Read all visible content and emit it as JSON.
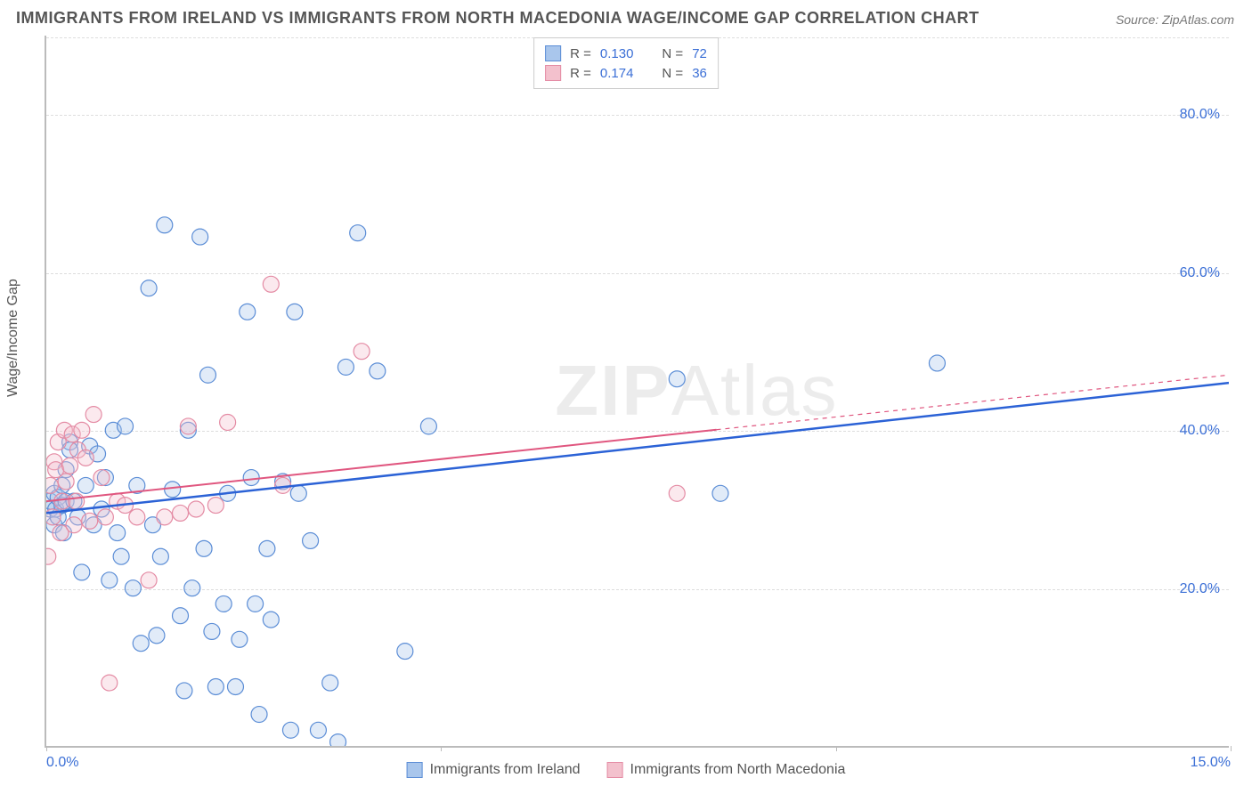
{
  "title": "IMMIGRANTS FROM IRELAND VS IMMIGRANTS FROM NORTH MACEDONIA WAGE/INCOME GAP CORRELATION CHART",
  "source": "Source: ZipAtlas.com",
  "ylabel": "Wage/Income Gap",
  "watermark_bold": "ZIP",
  "watermark_thin": "Atlas",
  "chart": {
    "type": "scatter",
    "background_color": "#ffffff",
    "grid_color": "#dddddd",
    "axis_color": "#bbbbbb",
    "tick_label_color": "#3b6fd6",
    "tick_fontsize": 16,
    "xlim": [
      0,
      15
    ],
    "ylim": [
      0,
      90
    ],
    "x_ticks": [
      0,
      5,
      10,
      15
    ],
    "x_tick_labels": [
      "0.0%",
      "",
      "",
      "15.0%"
    ],
    "y_gridlines": [
      20,
      40,
      60,
      80
    ],
    "y_tick_labels": [
      "20.0%",
      "40.0%",
      "60.0%",
      "80.0%"
    ],
    "marker_radius": 9,
    "marker_fill_opacity": 0.35,
    "legend_top": [
      {
        "swatch_fill": "#a9c6ec",
        "swatch_stroke": "#5b8dd6",
        "r_label": "R =",
        "r_value": "0.130",
        "n_label": "N =",
        "n_value": "72"
      },
      {
        "swatch_fill": "#f3c1cd",
        "swatch_stroke": "#e48ba4",
        "r_label": "R =",
        "r_value": "0.174",
        "n_label": "N =",
        "n_value": "36"
      }
    ],
    "legend_bottom": [
      {
        "swatch_fill": "#a9c6ec",
        "swatch_stroke": "#5b8dd6",
        "label": "Immigrants from Ireland"
      },
      {
        "swatch_fill": "#f3c1cd",
        "swatch_stroke": "#e48ba4",
        "label": "Immigrants from North Macedonia"
      }
    ],
    "series": [
      {
        "name": "Immigrants from Ireland",
        "color_fill": "#a9c6ec",
        "color_stroke": "#5b8dd6",
        "trend_color": "#2b62d6",
        "trend_width": 2.5,
        "trend": {
          "x1": 0,
          "y1": 29.5,
          "x2": 15,
          "y2": 46
        },
        "trend_dash_after_x": null,
        "points": [
          [
            0.05,
            30
          ],
          [
            0.05,
            31
          ],
          [
            0.1,
            28
          ],
          [
            0.1,
            32
          ],
          [
            0.12,
            30
          ],
          [
            0.15,
            31.5
          ],
          [
            0.15,
            29
          ],
          [
            0.2,
            33
          ],
          [
            0.2,
            30.5
          ],
          [
            0.22,
            27
          ],
          [
            0.25,
            31
          ],
          [
            0.25,
            35
          ],
          [
            0.3,
            38.5
          ],
          [
            0.3,
            37.5
          ],
          [
            0.35,
            31
          ],
          [
            0.4,
            29
          ],
          [
            0.45,
            22
          ],
          [
            0.5,
            33
          ],
          [
            0.55,
            38
          ],
          [
            0.6,
            28
          ],
          [
            0.65,
            37
          ],
          [
            0.7,
            30
          ],
          [
            0.75,
            34
          ],
          [
            0.8,
            21
          ],
          [
            0.85,
            40
          ],
          [
            0.9,
            27
          ],
          [
            0.95,
            24
          ],
          [
            1.0,
            40.5
          ],
          [
            1.1,
            20
          ],
          [
            1.15,
            33
          ],
          [
            1.2,
            13
          ],
          [
            1.3,
            58
          ],
          [
            1.35,
            28
          ],
          [
            1.4,
            14
          ],
          [
            1.45,
            24
          ],
          [
            1.5,
            66
          ],
          [
            1.6,
            32.5
          ],
          [
            1.7,
            16.5
          ],
          [
            1.75,
            7
          ],
          [
            1.8,
            40
          ],
          [
            1.85,
            20
          ],
          [
            1.95,
            64.5
          ],
          [
            2.0,
            25
          ],
          [
            2.05,
            47
          ],
          [
            2.1,
            14.5
          ],
          [
            2.15,
            7.5
          ],
          [
            2.25,
            18
          ],
          [
            2.3,
            32
          ],
          [
            2.4,
            7.5
          ],
          [
            2.45,
            13.5
          ],
          [
            2.55,
            55
          ],
          [
            2.6,
            34
          ],
          [
            2.65,
            18
          ],
          [
            2.7,
            4
          ],
          [
            2.8,
            25
          ],
          [
            2.85,
            16
          ],
          [
            3.0,
            33.5
          ],
          [
            3.1,
            2
          ],
          [
            3.15,
            55
          ],
          [
            3.2,
            32
          ],
          [
            3.35,
            26
          ],
          [
            3.45,
            2
          ],
          [
            3.6,
            8
          ],
          [
            3.7,
            0.5
          ],
          [
            3.8,
            48
          ],
          [
            3.95,
            65
          ],
          [
            4.2,
            47.5
          ],
          [
            4.55,
            12
          ],
          [
            4.85,
            40.5
          ],
          [
            8.0,
            46.5
          ],
          [
            8.55,
            32
          ],
          [
            11.3,
            48.5
          ]
        ]
      },
      {
        "name": "Immigrants from North Macedonia",
        "color_fill": "#f3c1cd",
        "color_stroke": "#e48ba4",
        "trend_color": "#e0567f",
        "trend_width": 2,
        "trend": {
          "x1": 0,
          "y1": 31,
          "x2": 15,
          "y2": 47
        },
        "trend_dash_after_x": 8.5,
        "points": [
          [
            0.02,
            24
          ],
          [
            0.05,
            33
          ],
          [
            0.08,
            29
          ],
          [
            0.1,
            36
          ],
          [
            0.12,
            35
          ],
          [
            0.15,
            38.5
          ],
          [
            0.18,
            27
          ],
          [
            0.2,
            31
          ],
          [
            0.23,
            40
          ],
          [
            0.25,
            33.5
          ],
          [
            0.3,
            35.5
          ],
          [
            0.33,
            39.5
          ],
          [
            0.35,
            28
          ],
          [
            0.38,
            31
          ],
          [
            0.4,
            37.5
          ],
          [
            0.45,
            40
          ],
          [
            0.5,
            36.5
          ],
          [
            0.55,
            28.5
          ],
          [
            0.6,
            42
          ],
          [
            0.7,
            34
          ],
          [
            0.75,
            29
          ],
          [
            0.8,
            8
          ],
          [
            0.9,
            31
          ],
          [
            1.0,
            30.5
          ],
          [
            1.15,
            29
          ],
          [
            1.3,
            21
          ],
          [
            1.5,
            29
          ],
          [
            1.7,
            29.5
          ],
          [
            1.8,
            40.5
          ],
          [
            1.9,
            30
          ],
          [
            2.15,
            30.5
          ],
          [
            2.3,
            41
          ],
          [
            2.85,
            58.5
          ],
          [
            3.0,
            33
          ],
          [
            4.0,
            50
          ],
          [
            8.0,
            32
          ]
        ]
      }
    ]
  }
}
